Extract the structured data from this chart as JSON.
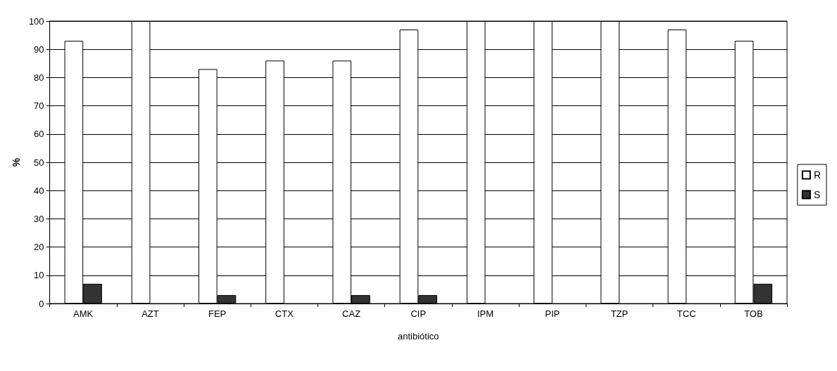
{
  "chart_data": {
    "type": "bar",
    "xlabel": "antibiótico",
    "ylabel": "%",
    "categories": [
      "AMK",
      "AZT",
      "FEP",
      "CTX",
      "CAZ",
      "CIP",
      "IPM",
      "PIP",
      "TZP",
      "TCC",
      "TOB"
    ],
    "series": [
      {
        "name": "R",
        "color": "#ffffff",
        "values": [
          93,
          100,
          83,
          86,
          86,
          97,
          100,
          100,
          100,
          97,
          93
        ]
      },
      {
        "name": "S",
        "color": "#333333",
        "values": [
          7,
          null,
          3,
          null,
          3,
          3,
          null,
          null,
          null,
          null,
          7
        ]
      }
    ],
    "ylim": [
      0,
      100
    ],
    "yticks": [
      0,
      10,
      20,
      30,
      40,
      50,
      60,
      70,
      80,
      90,
      100
    ],
    "grid": "y",
    "legend": "right"
  }
}
